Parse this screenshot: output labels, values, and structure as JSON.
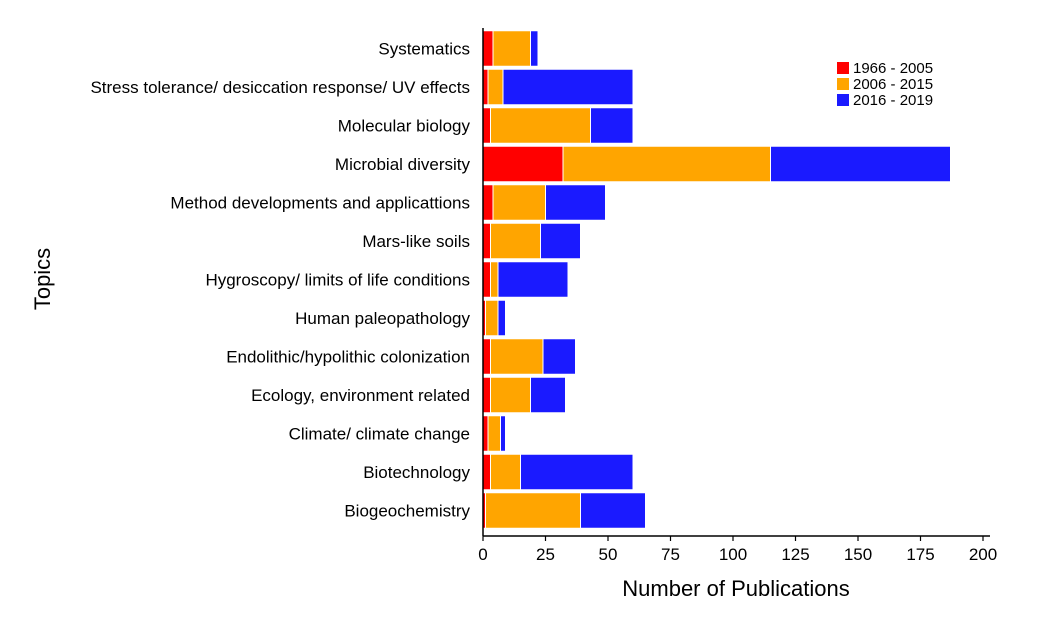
{
  "chart_data": {
    "type": "bar",
    "orientation": "horizontal",
    "stacked": true,
    "xlabel": "Number of Publications",
    "ylabel": "Topics",
    "xlim": [
      0,
      200
    ],
    "xticks": [
      "0",
      "25",
      "50",
      "75",
      "100",
      "125",
      "150",
      "175",
      "200"
    ],
    "categories": [
      "Systematics",
      "Stress tolerance/ desiccation response/ UV effects",
      "Molecular biology",
      "Microbial diversity",
      "Method developments and applicattions",
      "Mars-like soils",
      "Hygroscopy/ limits of life conditions",
      "Human paleopathology",
      "Endolithic/hypolithic colonization",
      "Ecology, environment related",
      "Climate/ climate change",
      "Biotechnology",
      "Biogeochemistry"
    ],
    "series": [
      {
        "name": "1966 - 2005",
        "color": "#ff0000",
        "values": [
          4,
          2,
          3,
          32,
          4,
          3,
          3,
          1,
          3,
          3,
          2,
          3,
          1
        ]
      },
      {
        "name": "2006 - 2015",
        "color": "#ffa500",
        "values": [
          15,
          6,
          40,
          83,
          21,
          20,
          3,
          5,
          21,
          16,
          5,
          12,
          38
        ]
      },
      {
        "name": "2016 - 2019",
        "color": "#1a1aff",
        "values": [
          3,
          52,
          17,
          72,
          24,
          16,
          28,
          3,
          13,
          14,
          2,
          45,
          26
        ]
      }
    ],
    "grid": false,
    "legend_position": "top-right"
  }
}
